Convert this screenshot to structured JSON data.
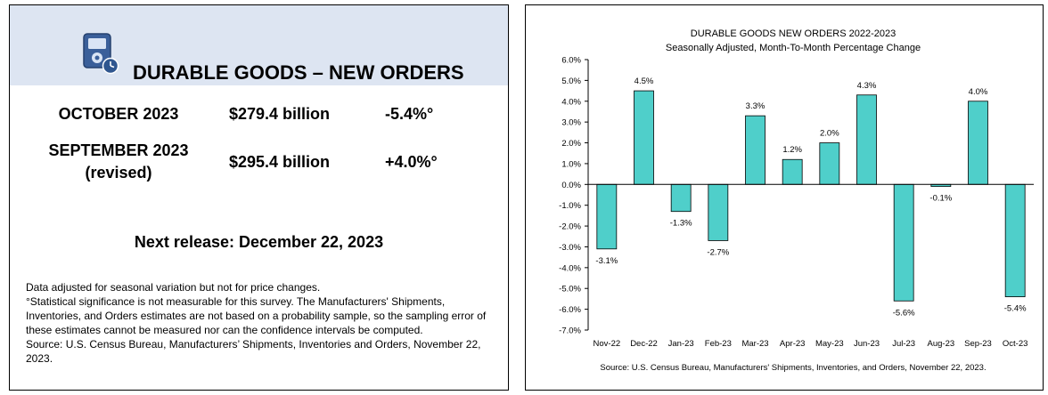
{
  "summary": {
    "title": "DURABLE GOODS – NEW ORDERS",
    "rows": [
      {
        "period": "OCTOBER 2023",
        "period_note": "",
        "amount": "$279.4 billion",
        "change": "-5.4%°"
      },
      {
        "period": "SEPTEMBER 2023",
        "period_note": "(revised)",
        "amount": "$295.4 billion",
        "change": "+4.0%°"
      }
    ],
    "next_release": "Next release: December 22, 2023",
    "notes": [
      "Data adjusted for seasonal variation but not for price changes.",
      "°Statistical significance is not measurable for this survey.  The Manufacturers' Shipments, Inventories, and Orders estimates are not based on a probability sample, so the sampling error of these estimates cannot be measured nor can the confidence intervals be computed.",
      "Source: U.S. Census Bureau, Manufacturers’ Shipments, Inventories and Orders, November 22, 2023."
    ],
    "icon": "calculator-clock-icon",
    "header_color": "#dde5f2"
  },
  "chart_data": {
    "type": "bar",
    "title": "DURABLE GOODS NEW ORDERS 2022-2023",
    "subtitle": "Seasonally Adjusted,  Month-To-Month Percentage Change",
    "categories": [
      "Nov-22",
      "Dec-22",
      "Jan-23",
      "Feb-23",
      "Mar-23",
      "Apr-23",
      "May-23",
      "Jun-23",
      "Jul-23",
      "Aug-23",
      "Sep-23",
      "Oct-23"
    ],
    "values": [
      -3.1,
      4.5,
      -1.3,
      -2.7,
      3.3,
      1.2,
      2.0,
      4.3,
      -5.6,
      -0.1,
      4.0,
      -5.4
    ],
    "value_labels": [
      "-3.1%",
      "4.5%",
      "-1.3%",
      "-2.7%",
      "3.3%",
      "1.2%",
      "2.0%",
      "4.3%",
      "-5.6%",
      "-0.1%",
      "4.0%",
      "-5.4%"
    ],
    "ylim": [
      -7.0,
      6.0
    ],
    "ytick_labels": [
      "6.0%",
      "5.0%",
      "4.0%",
      "3.0%",
      "2.0%",
      "1.0%",
      "0.0%",
      "-1.0%",
      "-2.0%",
      "-3.0%",
      "-4.0%",
      "-5.0%",
      "-6.0%",
      "-7.0%"
    ],
    "xlabel": "",
    "ylabel": "",
    "grid": false,
    "bar_color": "#4fcfca",
    "source": "Source: U.S. Census Bureau, Manufacturers' Shipments, Inventories, and Orders, November 22, 2023."
  }
}
